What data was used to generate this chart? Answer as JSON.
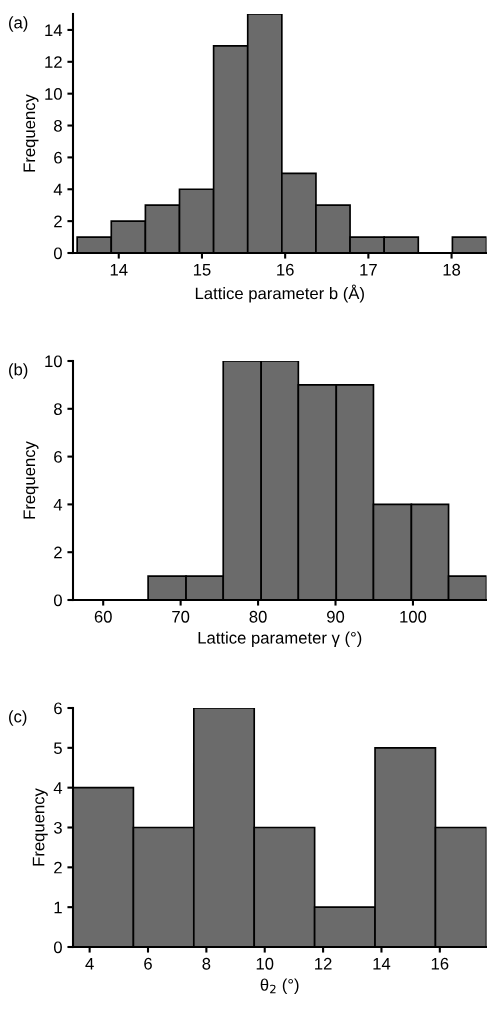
{
  "chart_data": [
    {
      "type": "histogram",
      "xlabel": "Lattice parameter b (Å)",
      "ylabel": "Frequency",
      "annotations": [
        "(a)"
      ],
      "color": "#6b6b6b",
      "bins": [
        13.5,
        13.91,
        14.32,
        14.73,
        15.14,
        15.55,
        15.96,
        16.37,
        16.78,
        17.19,
        17.6,
        18.01,
        18.42
      ],
      "values": [
        1,
        2,
        3,
        4,
        13,
        15,
        5,
        3,
        1,
        1,
        0,
        1
      ],
      "xlim": [
        13.45,
        18.42
      ],
      "xticks": [
        14,
        15,
        16,
        17,
        18
      ],
      "ylim": [
        0,
        15
      ],
      "yticks": [
        0,
        2,
        4,
        6,
        8,
        10,
        12,
        14
      ],
      "grid": false,
      "legend": false
    },
    {
      "type": "histogram",
      "xlabel": "Lattice parameter γ (°)",
      "ylabel": "Frequency",
      "annotations": [
        "(b)"
      ],
      "color": "#6b6b6b",
      "bins": [
        65.8,
        70.7,
        75.5,
        80.4,
        85.2,
        90.1,
        94.9,
        99.8,
        104.6,
        109.5
      ],
      "values": [
        1,
        1,
        10,
        10,
        9,
        9,
        4,
        4,
        1
      ],
      "xlim": [
        56.1,
        109.5
      ],
      "xticks": [
        60,
        70,
        80,
        90,
        100
      ],
      "ylim": [
        0,
        10
      ],
      "yticks": [
        0,
        2,
        4,
        6,
        8,
        10
      ],
      "grid": false,
      "legend": false
    },
    {
      "type": "histogram",
      "xlabel": "θ$_{2}$ (°)",
      "ylabel": "Frequency",
      "annotations": [
        "(c)"
      ],
      "color": "#6b6b6b",
      "bins": [
        3.43,
        5.5,
        7.57,
        9.64,
        11.71,
        13.78,
        15.85,
        17.6
      ],
      "values": [
        4,
        3,
        6,
        3,
        1,
        5,
        3
      ],
      "xlim": [
        3.43,
        17.6
      ],
      "xticks": [
        4,
        6,
        8,
        10,
        12,
        14,
        16
      ],
      "ylim": [
        0,
        6
      ],
      "yticks": [
        0,
        1,
        2,
        3,
        4,
        5,
        6
      ],
      "grid": false,
      "legend": false
    }
  ]
}
